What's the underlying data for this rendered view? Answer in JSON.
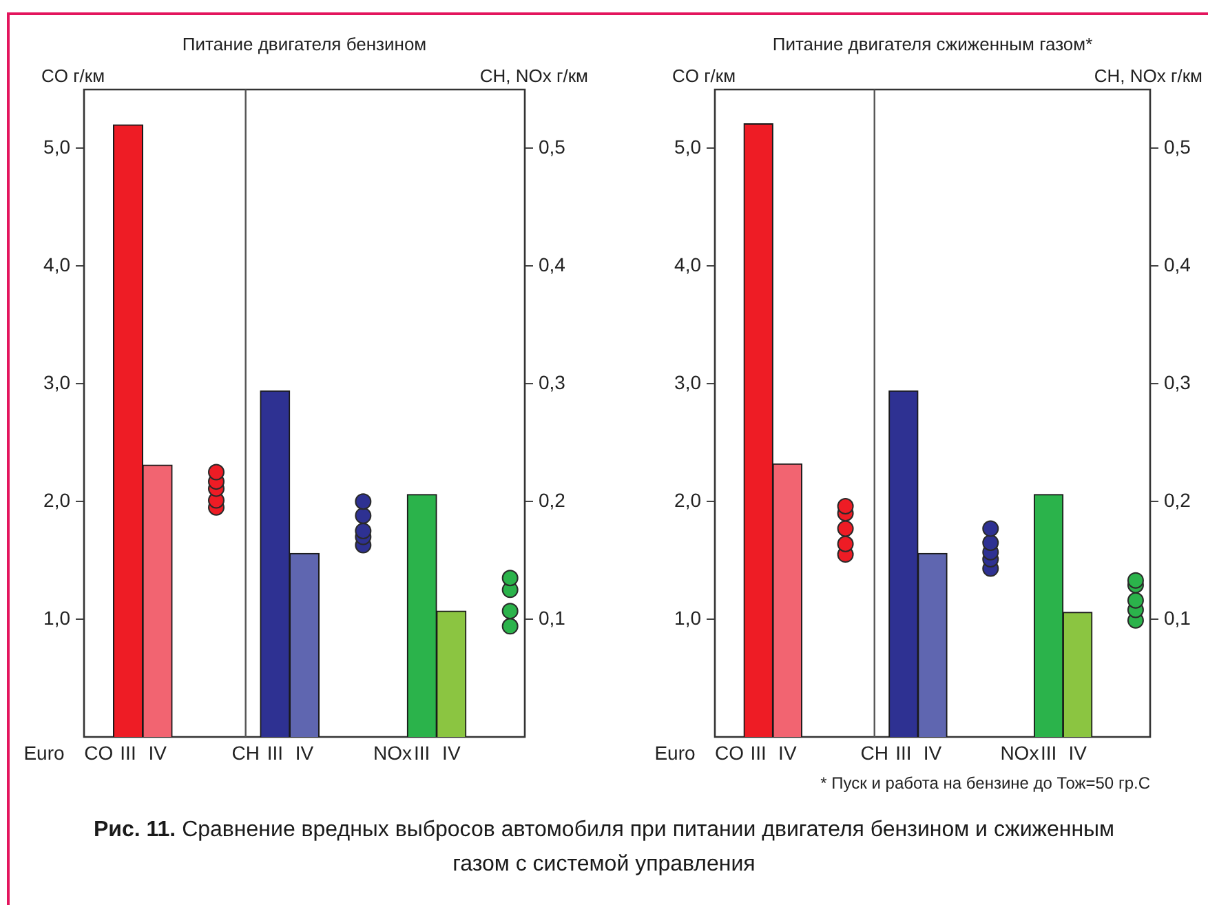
{
  "chart_data": [
    {
      "type": "bar",
      "title": "Питание двигателя бензином",
      "xlabel": "Euro",
      "ylabel": "CO г/км",
      "y2label": "CH, NOx г/км",
      "categories": [
        "CO",
        "III",
        "IV",
        null,
        null,
        "CH",
        "III",
        "IV",
        null,
        null,
        "NOx",
        "III",
        "IV",
        null,
        null
      ],
      "series": [
        {
          "type": "bar",
          "axis": "y",
          "values": [
            null,
            5.2,
            2.31,
            null,
            null,
            null,
            null,
            null,
            null,
            null,
            null,
            null,
            null,
            null,
            null
          ],
          "colors": [
            null,
            "#ee1c25",
            "#f26471",
            null,
            null,
            null,
            null,
            null,
            null,
            null,
            null,
            null,
            null,
            null,
            null
          ]
        },
        {
          "type": "bar",
          "axis": "y2",
          "values": [
            null,
            null,
            null,
            null,
            null,
            null,
            0.294,
            0.156,
            null,
            null,
            null,
            0.206,
            0.107,
            null,
            null
          ],
          "colors": [
            null,
            null,
            null,
            null,
            null,
            null,
            "#2e3192",
            "#5f66b0",
            null,
            null,
            null,
            "#2bb34b",
            "#8bc541",
            null,
            null
          ]
        },
        {
          "type": "scatter",
          "axis": "y",
          "color": "#ee1c25",
          "values": [
            null,
            null,
            null,
            null,
            2.25,
            null,
            null,
            null,
            null,
            null,
            null,
            null,
            null,
            null,
            null
          ]
        },
        {
          "type": "scatter",
          "axis": "y",
          "color": "#ee1c25",
          "values": [
            null,
            null,
            null,
            null,
            2.17,
            null,
            null,
            null,
            null,
            null,
            null,
            null,
            null,
            null,
            null
          ]
        },
        {
          "type": "scatter",
          "axis": "y",
          "color": "#ee1c25",
          "values": [
            null,
            null,
            null,
            null,
            2.11,
            null,
            null,
            null,
            null,
            null,
            null,
            null,
            null,
            null,
            null
          ]
        },
        {
          "type": "scatter",
          "axis": "y",
          "color": "#ee1c25",
          "values": [
            null,
            null,
            null,
            null,
            2.01,
            null,
            null,
            null,
            null,
            null,
            null,
            null,
            null,
            null,
            null
          ]
        },
        {
          "type": "scatter",
          "axis": "y",
          "color": "#ee1c25",
          "values": [
            null,
            null,
            null,
            null,
            1.95,
            null,
            null,
            null,
            null,
            null,
            null,
            null,
            null,
            null,
            null
          ]
        },
        {
          "type": "scatter",
          "axis": "y2",
          "values": [
            null,
            null,
            null,
            null,
            null,
            null,
            null,
            null,
            null,
            0.2,
            null,
            null,
            null,
            null,
            0.135
          ],
          "colors": [
            null,
            null,
            null,
            null,
            null,
            null,
            null,
            null,
            null,
            "#2e3192",
            null,
            null,
            null,
            null,
            "#2bb34b"
          ]
        },
        {
          "type": "scatter",
          "axis": "y2",
          "values": [
            null,
            null,
            null,
            null,
            null,
            null,
            null,
            null,
            null,
            0.188,
            null,
            null,
            null,
            null,
            0.125
          ],
          "colors": [
            null,
            null,
            null,
            null,
            null,
            null,
            null,
            null,
            null,
            "#2e3192",
            null,
            null,
            null,
            null,
            "#2bb34b"
          ]
        },
        {
          "type": "scatter",
          "axis": "y2",
          "values": [
            null,
            null,
            null,
            null,
            null,
            null,
            null,
            null,
            null,
            0.175,
            null,
            null,
            null,
            null,
            0.107
          ],
          "colors": [
            null,
            null,
            null,
            null,
            null,
            null,
            null,
            null,
            null,
            "#2e3192",
            null,
            null,
            null,
            null,
            "#2bb34b"
          ]
        },
        {
          "type": "scatter",
          "axis": "y2",
          "values": [
            null,
            null,
            null,
            null,
            null,
            null,
            null,
            null,
            null,
            0.17,
            null,
            null,
            null,
            null,
            0.094
          ],
          "colors": [
            null,
            null,
            null,
            null,
            null,
            null,
            null,
            null,
            null,
            "#2e3192",
            null,
            null,
            null,
            null,
            "#2bb34b"
          ]
        },
        {
          "type": "scatter",
          "axis": "y2",
          "values": [
            null,
            null,
            null,
            null,
            null,
            null,
            null,
            null,
            null,
            0.163,
            null,
            null,
            null,
            null,
            null
          ],
          "colors": [
            null,
            null,
            null,
            null,
            null,
            null,
            null,
            null,
            null,
            "#2e3192",
            null,
            null,
            null,
            null,
            null
          ]
        }
      ],
      "ylim": [
        0,
        5.5
      ],
      "yticks": [
        {
          "value": 1,
          "label": "1,0"
        },
        {
          "value": 2,
          "label": "2,0"
        },
        {
          "value": 3,
          "label": "3,0"
        },
        {
          "value": 4,
          "label": "4,0"
        },
        {
          "value": 5,
          "label": "5,0"
        }
      ],
      "y2lim": [
        0,
        0.55
      ],
      "y2ticks": [
        {
          "value": 0.1,
          "label": "0,1"
        },
        {
          "value": 0.2,
          "label": "0,2"
        },
        {
          "value": 0.3,
          "label": "0,3"
        },
        {
          "value": 0.4,
          "label": "0,4"
        },
        {
          "value": 0.5,
          "label": "0,5"
        }
      ],
      "ref_lines": [
        {
          "axis": "x",
          "value": "CH",
          "color": "#555555"
        }
      ],
      "marker": "circle"
    },
    {
      "type": "bar",
      "title": "Питание двигателя сжиженным газом*",
      "xlabel": "Euro",
      "ylabel": "CO г/км",
      "y2label": "CH, NOx г/км",
      "categories": [
        "CO",
        "III",
        "IV",
        null,
        null,
        "CH",
        "III",
        "IV",
        null,
        null,
        "NOx",
        "III",
        "IV",
        null,
        null
      ],
      "series": [
        {
          "type": "bar",
          "axis": "y",
          "values": [
            null,
            5.21,
            2.32,
            null,
            null,
            null,
            null,
            null,
            null,
            null,
            null,
            null,
            null,
            null,
            null
          ],
          "colors": [
            null,
            "#ee1c25",
            "#f26471",
            null,
            null,
            null,
            null,
            null,
            null,
            null,
            null,
            null,
            null,
            null,
            null
          ]
        },
        {
          "type": "bar",
          "axis": "y2",
          "values": [
            null,
            null,
            null,
            null,
            null,
            null,
            0.294,
            0.156,
            null,
            null,
            null,
            0.206,
            0.106,
            null,
            null
          ],
          "colors": [
            null,
            null,
            null,
            null,
            null,
            null,
            "#2e3192",
            "#5f66b0",
            null,
            null,
            null,
            "#2bb34b",
            "#8bc541",
            null,
            null
          ]
        },
        {
          "type": "scatter",
          "axis": "y",
          "color": "#ee1c25",
          "values": [
            null,
            null,
            null,
            null,
            1.96,
            null,
            null,
            null,
            null,
            null,
            null,
            null,
            null,
            null,
            null
          ]
        },
        {
          "type": "scatter",
          "axis": "y",
          "color": "#ee1c25",
          "values": [
            null,
            null,
            null,
            null,
            1.9,
            null,
            null,
            null,
            null,
            null,
            null,
            null,
            null,
            null,
            null
          ]
        },
        {
          "type": "scatter",
          "axis": "y",
          "color": "#ee1c25",
          "values": [
            null,
            null,
            null,
            null,
            1.77,
            null,
            null,
            null,
            null,
            null,
            null,
            null,
            null,
            null,
            null
          ]
        },
        {
          "type": "scatter",
          "axis": "y",
          "color": "#ee1c25",
          "values": [
            null,
            null,
            null,
            null,
            1.64,
            null,
            null,
            null,
            null,
            null,
            null,
            null,
            null,
            null,
            null
          ]
        },
        {
          "type": "scatter",
          "axis": "y",
          "color": "#ee1c25",
          "values": [
            null,
            null,
            null,
            null,
            1.55,
            null,
            null,
            null,
            null,
            null,
            null,
            null,
            null,
            null,
            null
          ]
        },
        {
          "type": "scatter",
          "axis": "y2",
          "values": [
            null,
            null,
            null,
            null,
            null,
            null,
            null,
            null,
            null,
            0.177,
            null,
            null,
            null,
            null,
            0.133
          ],
          "colors": [
            null,
            null,
            null,
            null,
            null,
            null,
            null,
            null,
            null,
            "#2e3192",
            null,
            null,
            null,
            null,
            "#2bb34b"
          ]
        },
        {
          "type": "scatter",
          "axis": "y2",
          "values": [
            null,
            null,
            null,
            null,
            null,
            null,
            null,
            null,
            null,
            0.165,
            null,
            null,
            null,
            null,
            0.129
          ],
          "colors": [
            null,
            null,
            null,
            null,
            null,
            null,
            null,
            null,
            null,
            "#2e3192",
            null,
            null,
            null,
            null,
            "#2bb34b"
          ]
        },
        {
          "type": "scatter",
          "axis": "y2",
          "values": [
            null,
            null,
            null,
            null,
            null,
            null,
            null,
            null,
            null,
            0.157,
            null,
            null,
            null,
            null,
            0.116
          ],
          "colors": [
            null,
            null,
            null,
            null,
            null,
            null,
            null,
            null,
            null,
            "#2e3192",
            null,
            null,
            null,
            null,
            "#2bb34b"
          ]
        },
        {
          "type": "scatter",
          "axis": "y2",
          "values": [
            null,
            null,
            null,
            null,
            null,
            null,
            null,
            null,
            null,
            0.151,
            null,
            null,
            null,
            null,
            0.108
          ],
          "colors": [
            null,
            null,
            null,
            null,
            null,
            null,
            null,
            null,
            null,
            "#2e3192",
            null,
            null,
            null,
            null,
            "#2bb34b"
          ]
        },
        {
          "type": "scatter",
          "axis": "y2",
          "values": [
            null,
            null,
            null,
            null,
            null,
            null,
            null,
            null,
            null,
            0.143,
            null,
            null,
            null,
            null,
            0.099
          ],
          "colors": [
            null,
            null,
            null,
            null,
            null,
            null,
            null,
            null,
            null,
            "#2e3192",
            null,
            null,
            null,
            null,
            "#2bb34b"
          ]
        }
      ],
      "ylim": [
        0,
        5.5
      ],
      "yticks": [
        {
          "value": 1,
          "label": "1,0"
        },
        {
          "value": 2,
          "label": "2,0"
        },
        {
          "value": 3,
          "label": "3,0"
        },
        {
          "value": 4,
          "label": "4,0"
        },
        {
          "value": 5,
          "label": "5,0"
        }
      ],
      "y2lim": [
        0,
        0.55
      ],
      "y2ticks": [
        {
          "value": 0.1,
          "label": "0,1"
        },
        {
          "value": 0.2,
          "label": "0,2"
        },
        {
          "value": 0.3,
          "label": "0,3"
        },
        {
          "value": 0.4,
          "label": "0,4"
        },
        {
          "value": 0.5,
          "label": "0,5"
        }
      ],
      "ref_lines": [
        {
          "axis": "x",
          "value": "CH",
          "color": "#555555"
        }
      ],
      "marker": "circle",
      "annotations": [
        "* Пуск и работа на бензине до Тож=50 гр.С"
      ]
    },
    {
      "type": "other",
      "annotations": [
        "Рис. 11.",
        "Сравнение вредных выбросов автомобиля при питании двигателя бензином и сжиженным газом с системой управления"
      ]
    }
  ]
}
